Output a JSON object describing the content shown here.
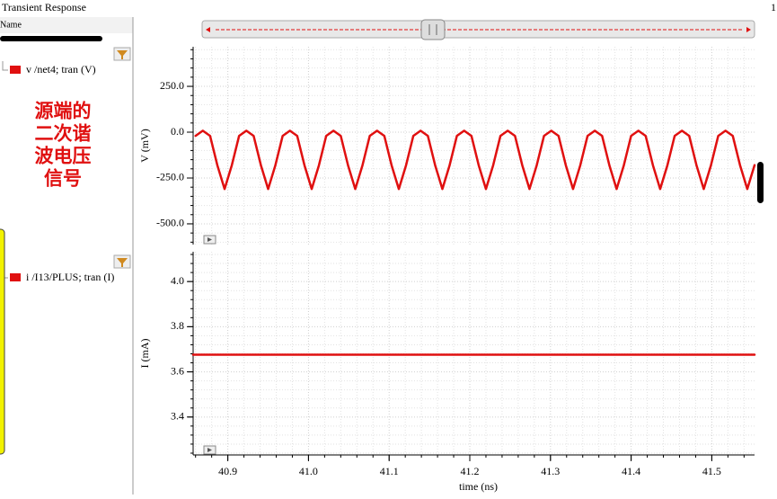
{
  "window": {
    "title": "Transient Response",
    "page": "1"
  },
  "panel": {
    "header": "Name",
    "annotation": [
      "源端的",
      "二次谐",
      "波电压",
      "信号"
    ]
  },
  "chart_data": [
    {
      "type": "line",
      "y_label": "V (mV)",
      "x": [
        40.86,
        40.869,
        40.878,
        40.887,
        40.896,
        40.905,
        40.914,
        40.923,
        40.932,
        40.941,
        40.95,
        40.959,
        40.968,
        40.977,
        40.986,
        40.995,
        41.004,
        41.013,
        41.022,
        41.031,
        41.04,
        41.049,
        41.058,
        41.067,
        41.076,
        41.085,
        41.094,
        41.103,
        41.112,
        41.121,
        41.13,
        41.139,
        41.148,
        41.157,
        41.166,
        41.175,
        41.184,
        41.193,
        41.202,
        41.211,
        41.22,
        41.229,
        41.238,
        41.247,
        41.256,
        41.265,
        41.274,
        41.283,
        41.292,
        41.301,
        41.31,
        41.319,
        41.328,
        41.337,
        41.346,
        41.355,
        41.364,
        41.373,
        41.382,
        41.391,
        41.4,
        41.409,
        41.418,
        41.427,
        41.436,
        41.445,
        41.454,
        41.463,
        41.472,
        41.481,
        41.49,
        41.499,
        41.508,
        41.517,
        41.526,
        41.535,
        41.544,
        41.553
      ],
      "series": [
        {
          "name": "v /net4; tran (V)",
          "color": "#e01010",
          "values": [
            -20,
            8,
            -20,
            -180,
            -310,
            -180,
            -20,
            8,
            -20,
            -180,
            -310,
            -180,
            -20,
            8,
            -20,
            -180,
            -310,
            -180,
            -20,
            8,
            -20,
            -180,
            -310,
            -180,
            -20,
            8,
            -20,
            -180,
            -310,
            -180,
            -20,
            8,
            -20,
            -180,
            -310,
            -180,
            -20,
            8,
            -20,
            -180,
            -310,
            -180,
            -20,
            8,
            -20,
            -180,
            -310,
            -180,
            -20,
            8,
            -20,
            -180,
            -310,
            -180,
            -20,
            8,
            -20,
            -180,
            -310,
            -180,
            -20,
            8,
            -20,
            -180,
            -310,
            -180,
            -20,
            8,
            -20,
            -180,
            -310,
            -180,
            -20,
            8,
            -20,
            -180,
            -310,
            -180
          ]
        }
      ],
      "xlim": [
        40.857,
        41.553
      ],
      "ylim": [
        -613,
        466
      ],
      "yticks": [
        {
          "value": 250,
          "label": "250.0"
        },
        {
          "value": 0,
          "label": "0.0"
        },
        {
          "value": -250,
          "label": "-250.0"
        },
        {
          "value": -500,
          "label": "-500.0"
        }
      ],
      "grid": true
    },
    {
      "type": "line",
      "y_label": "I (mA)",
      "x_label": "time (ns)",
      "x": [
        40.857,
        41.553
      ],
      "series": [
        {
          "name": "i /I13/PLUS; tran (I)",
          "color": "#e01010",
          "values": [
            3.676,
            3.676
          ]
        }
      ],
      "xlim": [
        40.857,
        41.553
      ],
      "ylim": [
        3.232,
        4.132
      ],
      "xticks": [
        40.9,
        {
          "value": 41.0,
          "label": "41.0"
        },
        41.1,
        41.2,
        41.3,
        41.4,
        41.5
      ],
      "yticks": [
        {
          "value": 4.0,
          "label": "4.0"
        },
        3.8,
        3.6,
        3.4
      ],
      "grid": true
    }
  ]
}
